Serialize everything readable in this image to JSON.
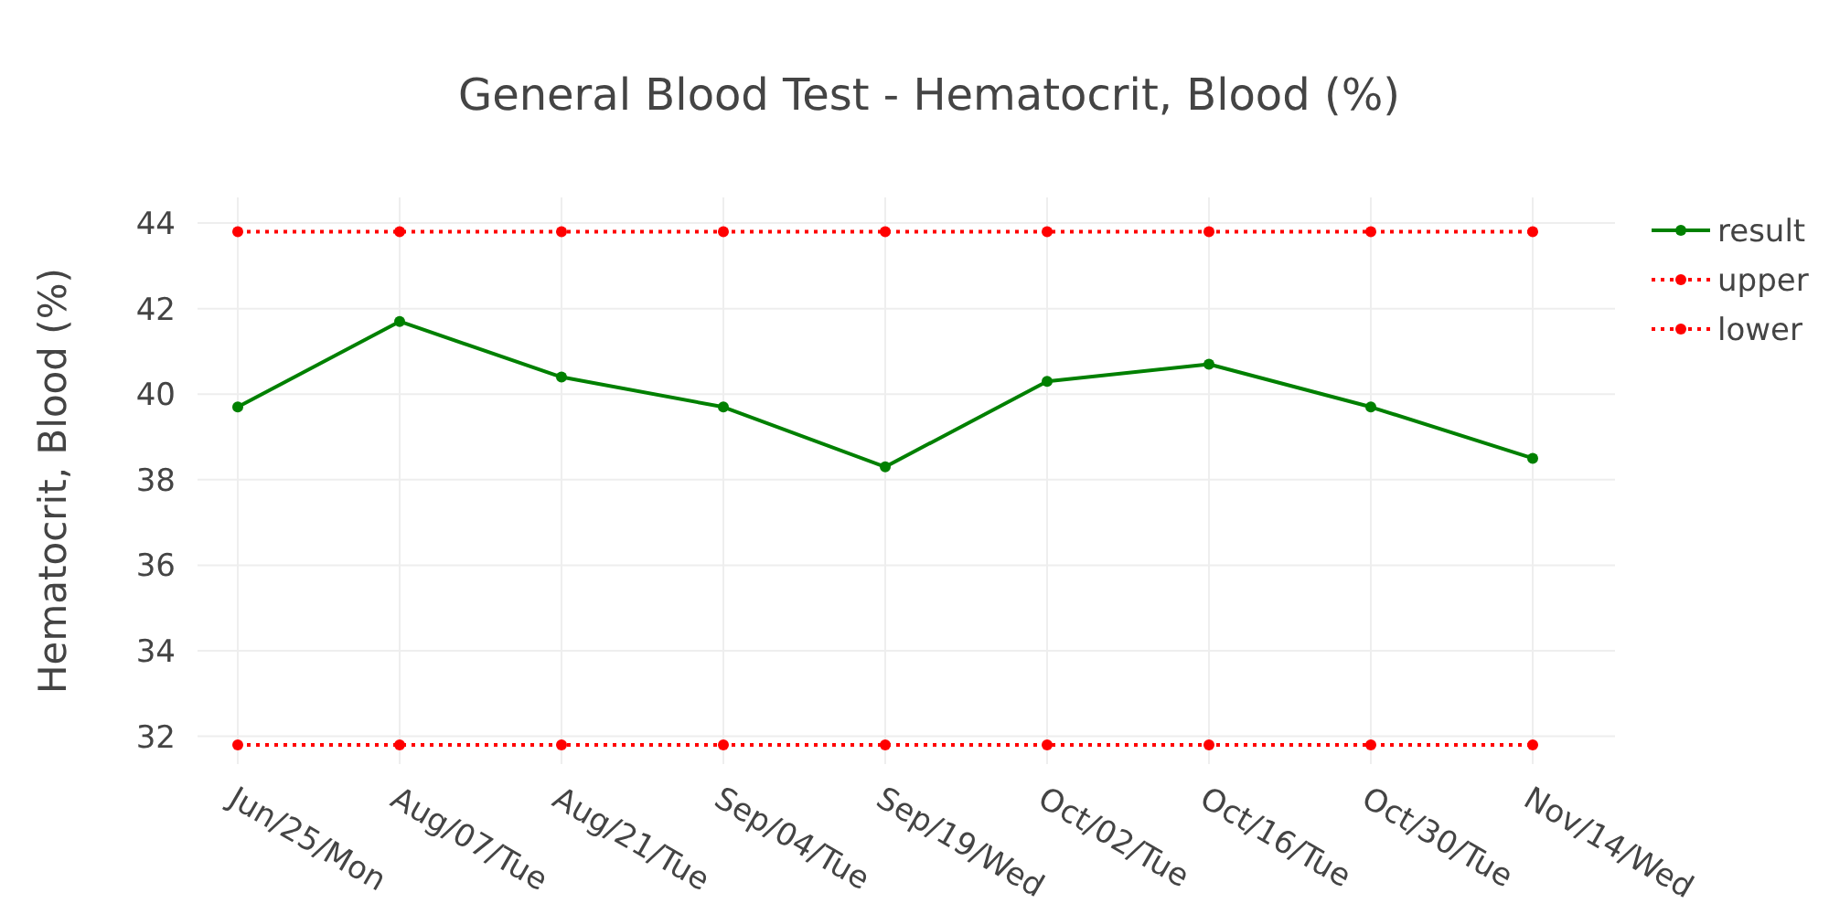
{
  "chart_data": {
    "type": "line",
    "title": "General Blood Test - Hematocrit, Blood (%)",
    "ylabel": "Hematocrit, Blood (%)",
    "categories": [
      "Jun/25/Mon",
      "Aug/07/Tue",
      "Aug/21/Tue",
      "Sep/04/Tue",
      "Sep/19/Wed",
      "Oct/02/Tue",
      "Oct/16/Tue",
      "Oct/30/Tue",
      "Nov/14/Wed"
    ],
    "series": [
      {
        "name": "result",
        "color": "#008000",
        "line_style": "solid",
        "values": [
          39.7,
          41.7,
          40.4,
          39.7,
          38.3,
          40.3,
          40.7,
          39.7,
          38.5
        ]
      },
      {
        "name": "upper",
        "color": "#ff0000",
        "line_style": "dotted",
        "values": [
          43.8,
          43.8,
          43.8,
          43.8,
          43.8,
          43.8,
          43.8,
          43.8,
          43.8
        ]
      },
      {
        "name": "lower",
        "color": "#ff0000",
        "line_style": "dotted",
        "values": [
          31.8,
          31.8,
          31.8,
          31.8,
          31.8,
          31.8,
          31.8,
          31.8,
          31.8
        ]
      }
    ],
    "ylim": [
      31.35,
      44.6
    ],
    "yticks": [
      32,
      34,
      36,
      38,
      40,
      42,
      44
    ],
    "grid": true,
    "legend": "top right",
    "marker": "circle"
  }
}
